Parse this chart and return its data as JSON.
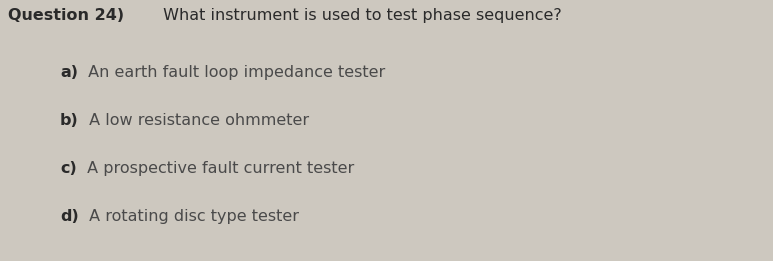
{
  "background_color": "#cdc8bf",
  "text_color": "#4a4a4a",
  "bold_color": "#2a2a2a",
  "question_bold": "Question 24)",
  "question_normal": " What instrument is used to test phase sequence?",
  "options": [
    {
      "label": "a)",
      "text": " An earth fault loop impedance tester"
    },
    {
      "label": "b)",
      "text": " A low resistance ohmmeter"
    },
    {
      "label": "c)",
      "text": " A prospective fault current tester"
    },
    {
      "label": "d)",
      "text": " A rotating disc type tester"
    }
  ],
  "question_fontsize": 11.5,
  "option_fontsize": 11.5,
  "fig_width": 7.73,
  "fig_height": 2.61,
  "dpi": 100
}
